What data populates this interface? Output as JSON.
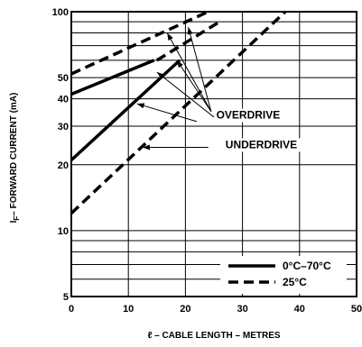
{
  "chart_data": {
    "type": "line",
    "x_axis": {
      "label": "ℓ – CABLE LENGTH – METRES",
      "range": [
        0,
        50
      ],
      "ticks": [
        0,
        10,
        20,
        30,
        40,
        50
      ],
      "tick_labels": [
        "0",
        "10",
        "20",
        "30",
        "40",
        "50"
      ],
      "scale": "linear"
    },
    "y_axis": {
      "label": "I F – FORWARD CURRENT (mA)",
      "label_main": "I",
      "label_sub": "F",
      "label_rest": "– FORWARD CURRENT (mA)",
      "range": [
        5,
        100
      ],
      "scale": "log",
      "tick_labels": [
        {
          "value": 100,
          "text": "100"
        },
        {
          "value": 50,
          "text": "50"
        },
        {
          "value": 40,
          "text": "40"
        },
        {
          "value": 30,
          "text": "30"
        },
        {
          "value": 20,
          "text": "20"
        },
        {
          "value": 10,
          "text": "10"
        },
        {
          "value": 5,
          "text": "5"
        }
      ],
      "gridlines": [
        5,
        6,
        7,
        8,
        9,
        10,
        20,
        30,
        40,
        50,
        60,
        70,
        80,
        90,
        100
      ]
    },
    "grid": true,
    "series": [
      {
        "name": "0°C–70°C",
        "group": "OVERDRIVE",
        "style": "solid",
        "x": [
          0,
          14.5
        ],
        "y": [
          42,
          60
        ]
      },
      {
        "name": "0°C–70°C",
        "group": "UNDERDRIVE",
        "style": "solid",
        "x": [
          0,
          19
        ],
        "y": [
          21,
          60
        ]
      },
      {
        "name": "25°C",
        "group": "OVERDRIVE",
        "style": "dashed",
        "x": [
          0,
          24
        ],
        "y": [
          52,
          100
        ]
      },
      {
        "name": "25°C",
        "group": "OVERDRIVE",
        "style": "dashed",
        "x": [
          15,
          26
        ],
        "y": [
          60,
          90
        ]
      },
      {
        "name": "25°C",
        "group": "UNDERDRIVE",
        "style": "dashed",
        "x": [
          0,
          37.5
        ],
        "y": [
          12,
          100
        ]
      }
    ],
    "annotations": [
      {
        "text": "OVERDRIVE"
      },
      {
        "text": "UNDERDRIVE"
      }
    ],
    "legend": {
      "placement": "bottom-right",
      "entries": [
        {
          "label": "0°C–70°C",
          "style": "solid"
        },
        {
          "label": "25°C",
          "style": "dashed"
        }
      ]
    }
  }
}
